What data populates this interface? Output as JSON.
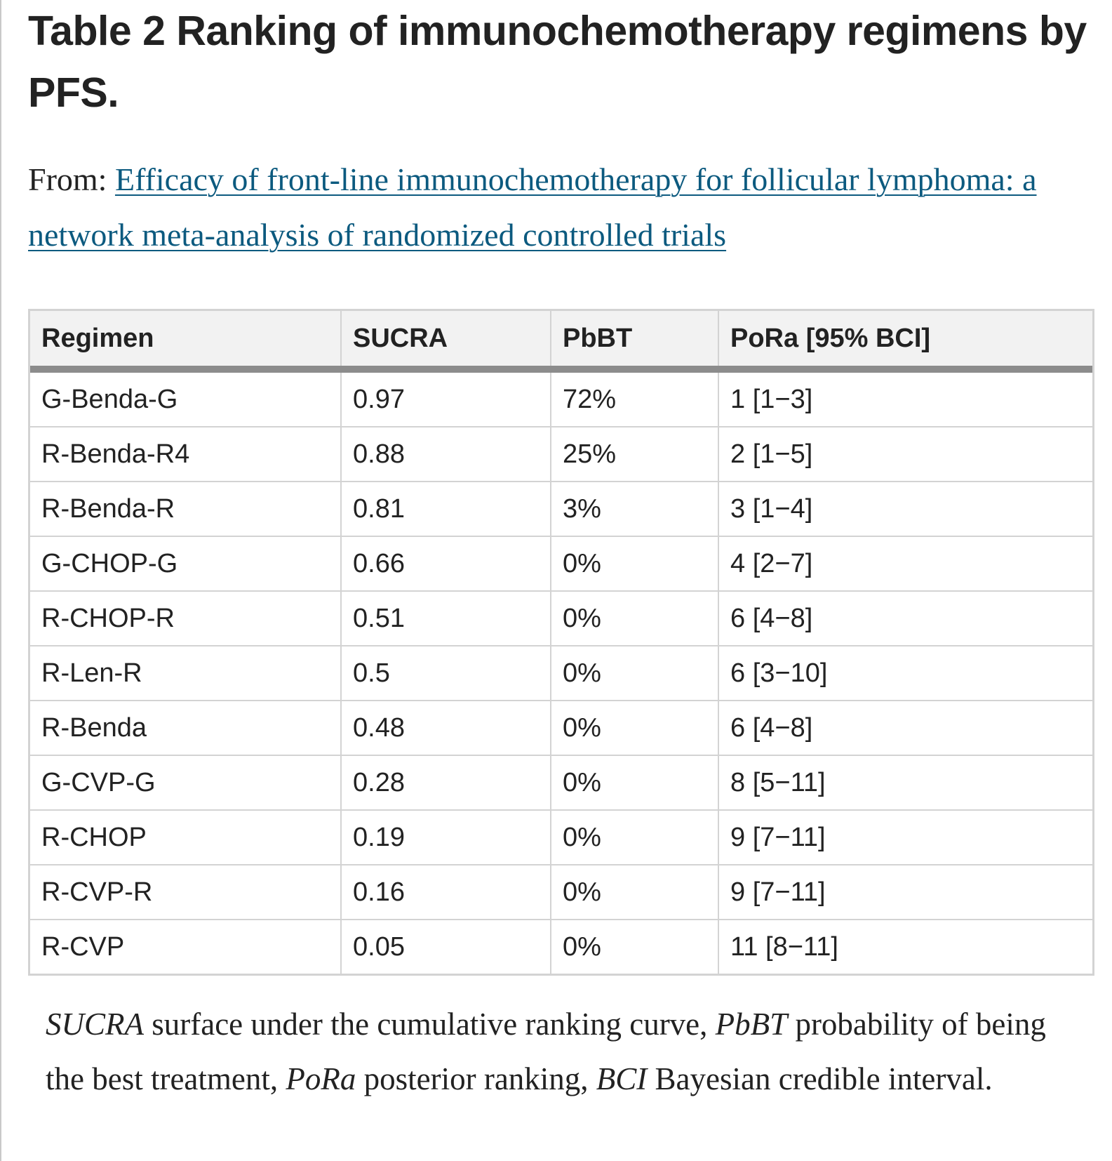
{
  "title": "Table 2 Ranking of immunochemotherapy regimens by PFS.",
  "source": {
    "prefix": "From:",
    "link_text": "Efficacy of front-line immunochemotherapy for follicular lymphoma: a network meta-analysis of randomized controlled trials"
  },
  "table": {
    "headers": [
      "Regimen",
      "SUCRA",
      "PbBT",
      "PoRa [95% BCI]"
    ],
    "rows": [
      [
        "G-Benda-G",
        "0.97",
        "72%",
        "1 [1−3]"
      ],
      [
        "R-Benda-R4",
        "0.88",
        "25%",
        "2 [1−5]"
      ],
      [
        "R-Benda-R",
        "0.81",
        "3%",
        "3 [1−4]"
      ],
      [
        "G-CHOP-G",
        "0.66",
        "0%",
        "4 [2−7]"
      ],
      [
        "R-CHOP-R",
        "0.51",
        "0%",
        "6 [4−8]"
      ],
      [
        "R-Len-R",
        "0.5",
        "0%",
        "6 [3−10]"
      ],
      [
        "R-Benda",
        "0.48",
        "0%",
        "6 [4−8]"
      ],
      [
        "G-CVP-G",
        "0.28",
        "0%",
        "8 [5−11]"
      ],
      [
        "R-CHOP",
        "0.19",
        "0%",
        "9 [7−11]"
      ],
      [
        "R-CVP-R",
        "0.16",
        "0%",
        "9 [7−11]"
      ],
      [
        "R-CVP",
        "0.05",
        "0%",
        "11 [8−11]"
      ]
    ]
  },
  "footnote": {
    "abbr1": "SUCRA",
    "def1": " surface under the cumulative ranking curve, ",
    "abbr2": "PbBT",
    "def2": " probability of being the best treatment, ",
    "abbr3": "PoRa",
    "def3": " posterior ranking, ",
    "abbr4": "BCI",
    "def4": " Bayesian credible interval."
  }
}
